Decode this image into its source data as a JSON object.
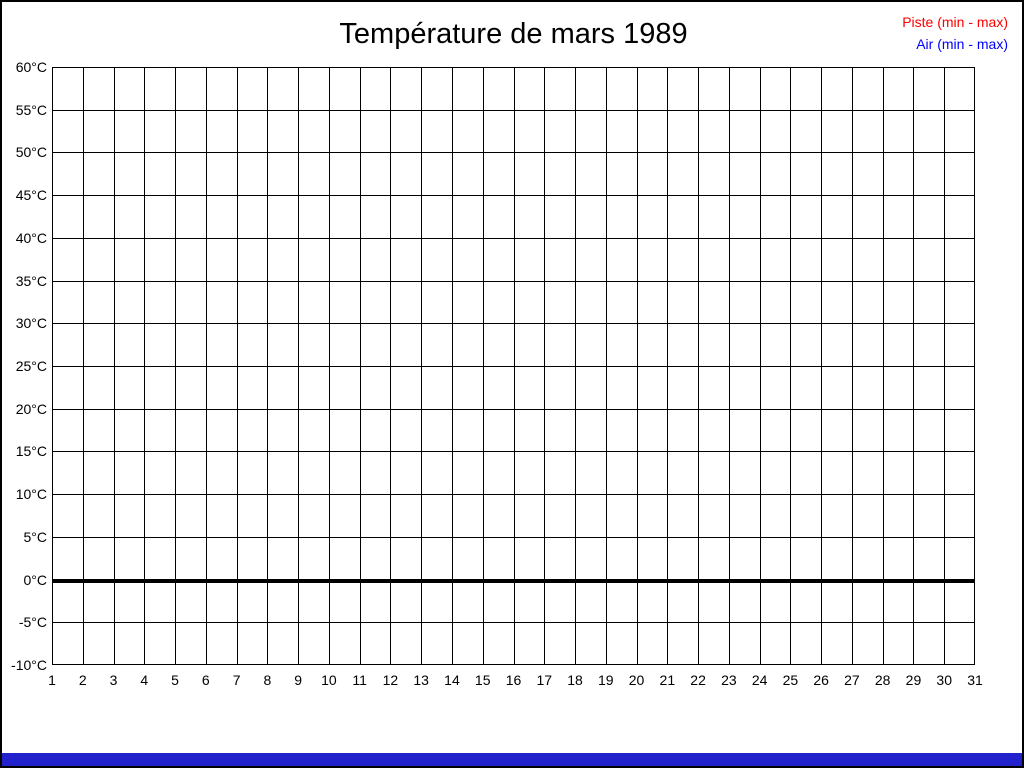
{
  "title": "Température de mars 1989",
  "legend": {
    "items": [
      {
        "label": "Piste (min - max)",
        "color": "#ff0000"
      },
      {
        "label": "Air (min - max)",
        "color": "#0000ff"
      }
    ]
  },
  "bottom_bar": {
    "color": "#2222cc"
  },
  "frame_color": "#000000",
  "chart_data": {
    "type": "line",
    "title": "Température de mars 1989",
    "x": {
      "label": "",
      "tick_labels": [
        "1",
        "2",
        "3",
        "4",
        "5",
        "6",
        "7",
        "8",
        "9",
        "10",
        "11",
        "12",
        "13",
        "14",
        "15",
        "16",
        "17",
        "18",
        "19",
        "20",
        "21",
        "22",
        "23",
        "24",
        "25",
        "26",
        "27",
        "28",
        "29",
        "30",
        "31"
      ]
    },
    "y": {
      "label": "",
      "tick_labels": [
        "60°C",
        "55°C",
        "50°C",
        "45°C",
        "40°C",
        "35°C",
        "30°C",
        "25°C",
        "20°C",
        "15°C",
        "10°C",
        "5°C",
        "0°C",
        "-5°C",
        "-10°C"
      ],
      "min": -10,
      "max": 60,
      "step": 5
    },
    "grid": true,
    "grid_color": "#000000",
    "zero_line": {
      "value": 0,
      "thickness_px": 4
    },
    "legend_position": "top-right",
    "series": [
      {
        "name": "Piste (min - max)",
        "color": "#ff0000",
        "values": []
      },
      {
        "name": "Air (min - max)",
        "color": "#0000ff",
        "values": []
      }
    ]
  }
}
